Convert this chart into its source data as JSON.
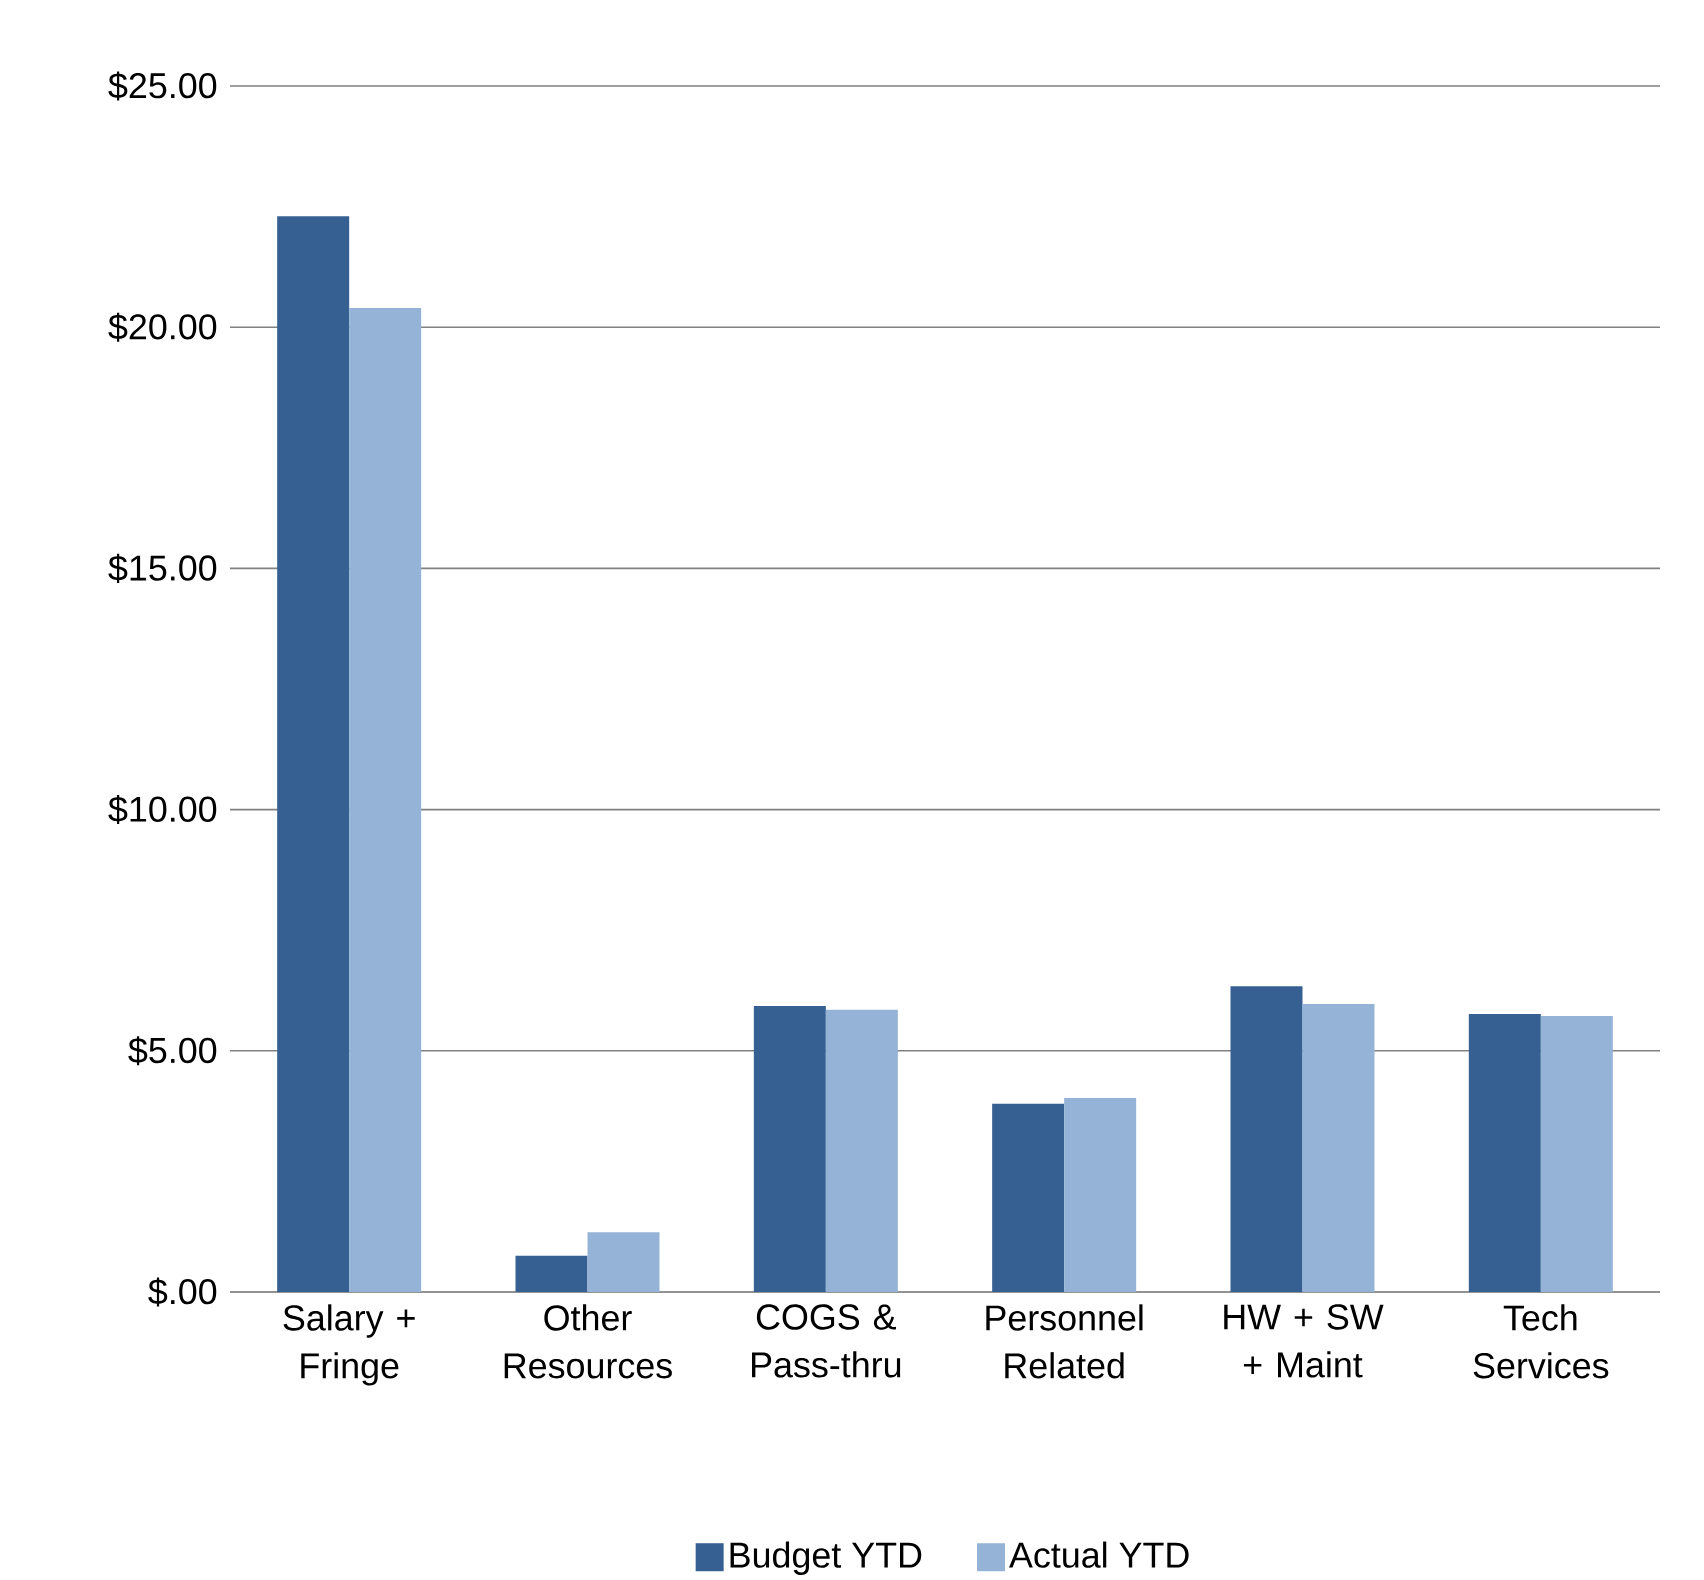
{
  "chart_data": {
    "type": "bar",
    "categories": [
      "Salary + Fringe",
      "Other Resources",
      "COGS & Pass-thru",
      "Personnel Related",
      "HW + SW + Maint",
      "Tech Services"
    ],
    "series": [
      {
        "name": "Budget YTD",
        "color": "#366092",
        "values": [
          22.3,
          0.75,
          5.93,
          3.9,
          6.34,
          5.76
        ]
      },
      {
        "name": "Actual YTD",
        "color": "#95b3d7",
        "values": [
          20.4,
          1.24,
          5.85,
          4.02,
          5.97,
          5.72
        ]
      }
    ],
    "ylim": [
      0,
      25
    ],
    "yticks": [
      {
        "value": 0,
        "label": "$.00"
      },
      {
        "value": 5,
        "label": "$5.00"
      },
      {
        "value": 10,
        "label": "$10.00"
      },
      {
        "value": 15,
        "label": "$15.00"
      },
      {
        "value": 20,
        "label": "$20.00"
      },
      {
        "value": 25,
        "label": "$25.00"
      }
    ],
    "grid": "y",
    "legend": "bottom"
  }
}
